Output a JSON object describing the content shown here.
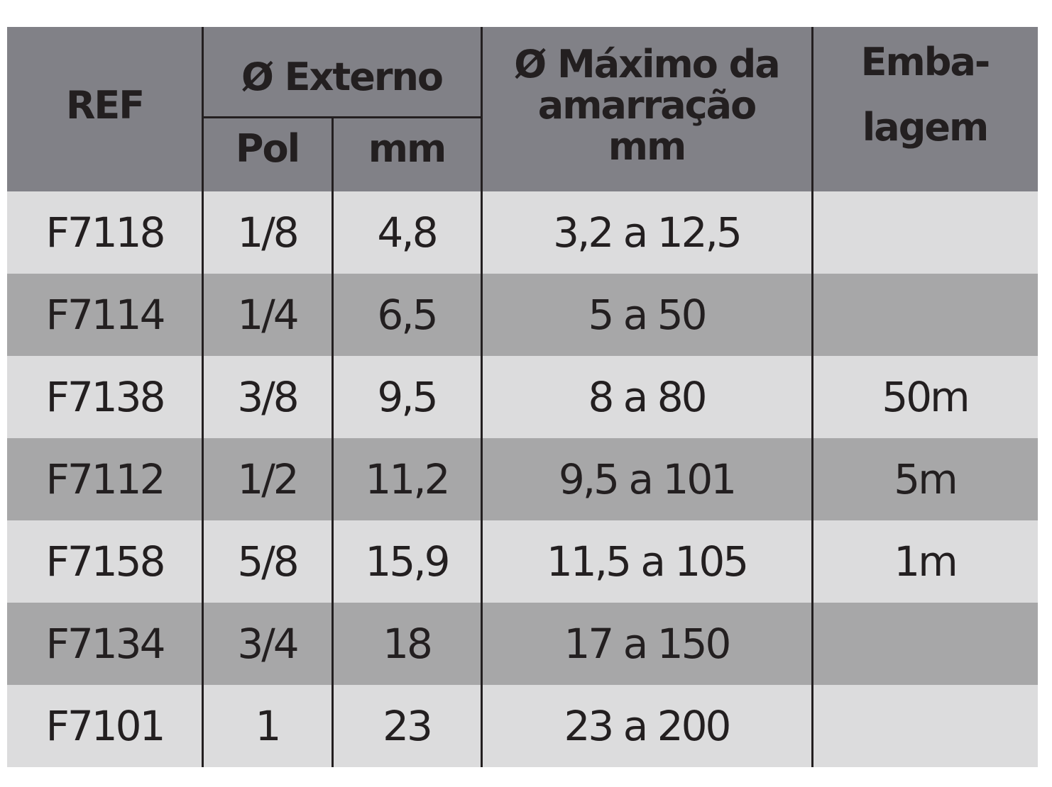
{
  "table": {
    "header": {
      "ref": "REF",
      "external": "Ø Externo",
      "pol": "Pol",
      "mm": "mm",
      "max_tie": [
        "Ø Máximo da",
        "amarração",
        "mm"
      ],
      "packaging": [
        "Emba-",
        "lagem"
      ]
    },
    "rows": [
      [
        "F7118",
        "1/8",
        "4,8",
        "3,2 a 12,5",
        null
      ],
      [
        "F7114",
        "1/4",
        "6,5",
        "5 a 50",
        null
      ],
      [
        "F7138",
        "3/8",
        "9,5",
        "8 a 80",
        "50m"
      ],
      [
        "F7112",
        "1/2",
        "11,2",
        "9,5 a 101",
        "5m"
      ],
      [
        "F7158",
        "5/8",
        "15,9",
        "11,5 a 105",
        "1m"
      ],
      [
        "F7134",
        "3/4",
        "18",
        "17 a 150",
        null
      ],
      [
        "F7101",
        "1",
        "23",
        "23 a 200",
        null
      ]
    ]
  }
}
